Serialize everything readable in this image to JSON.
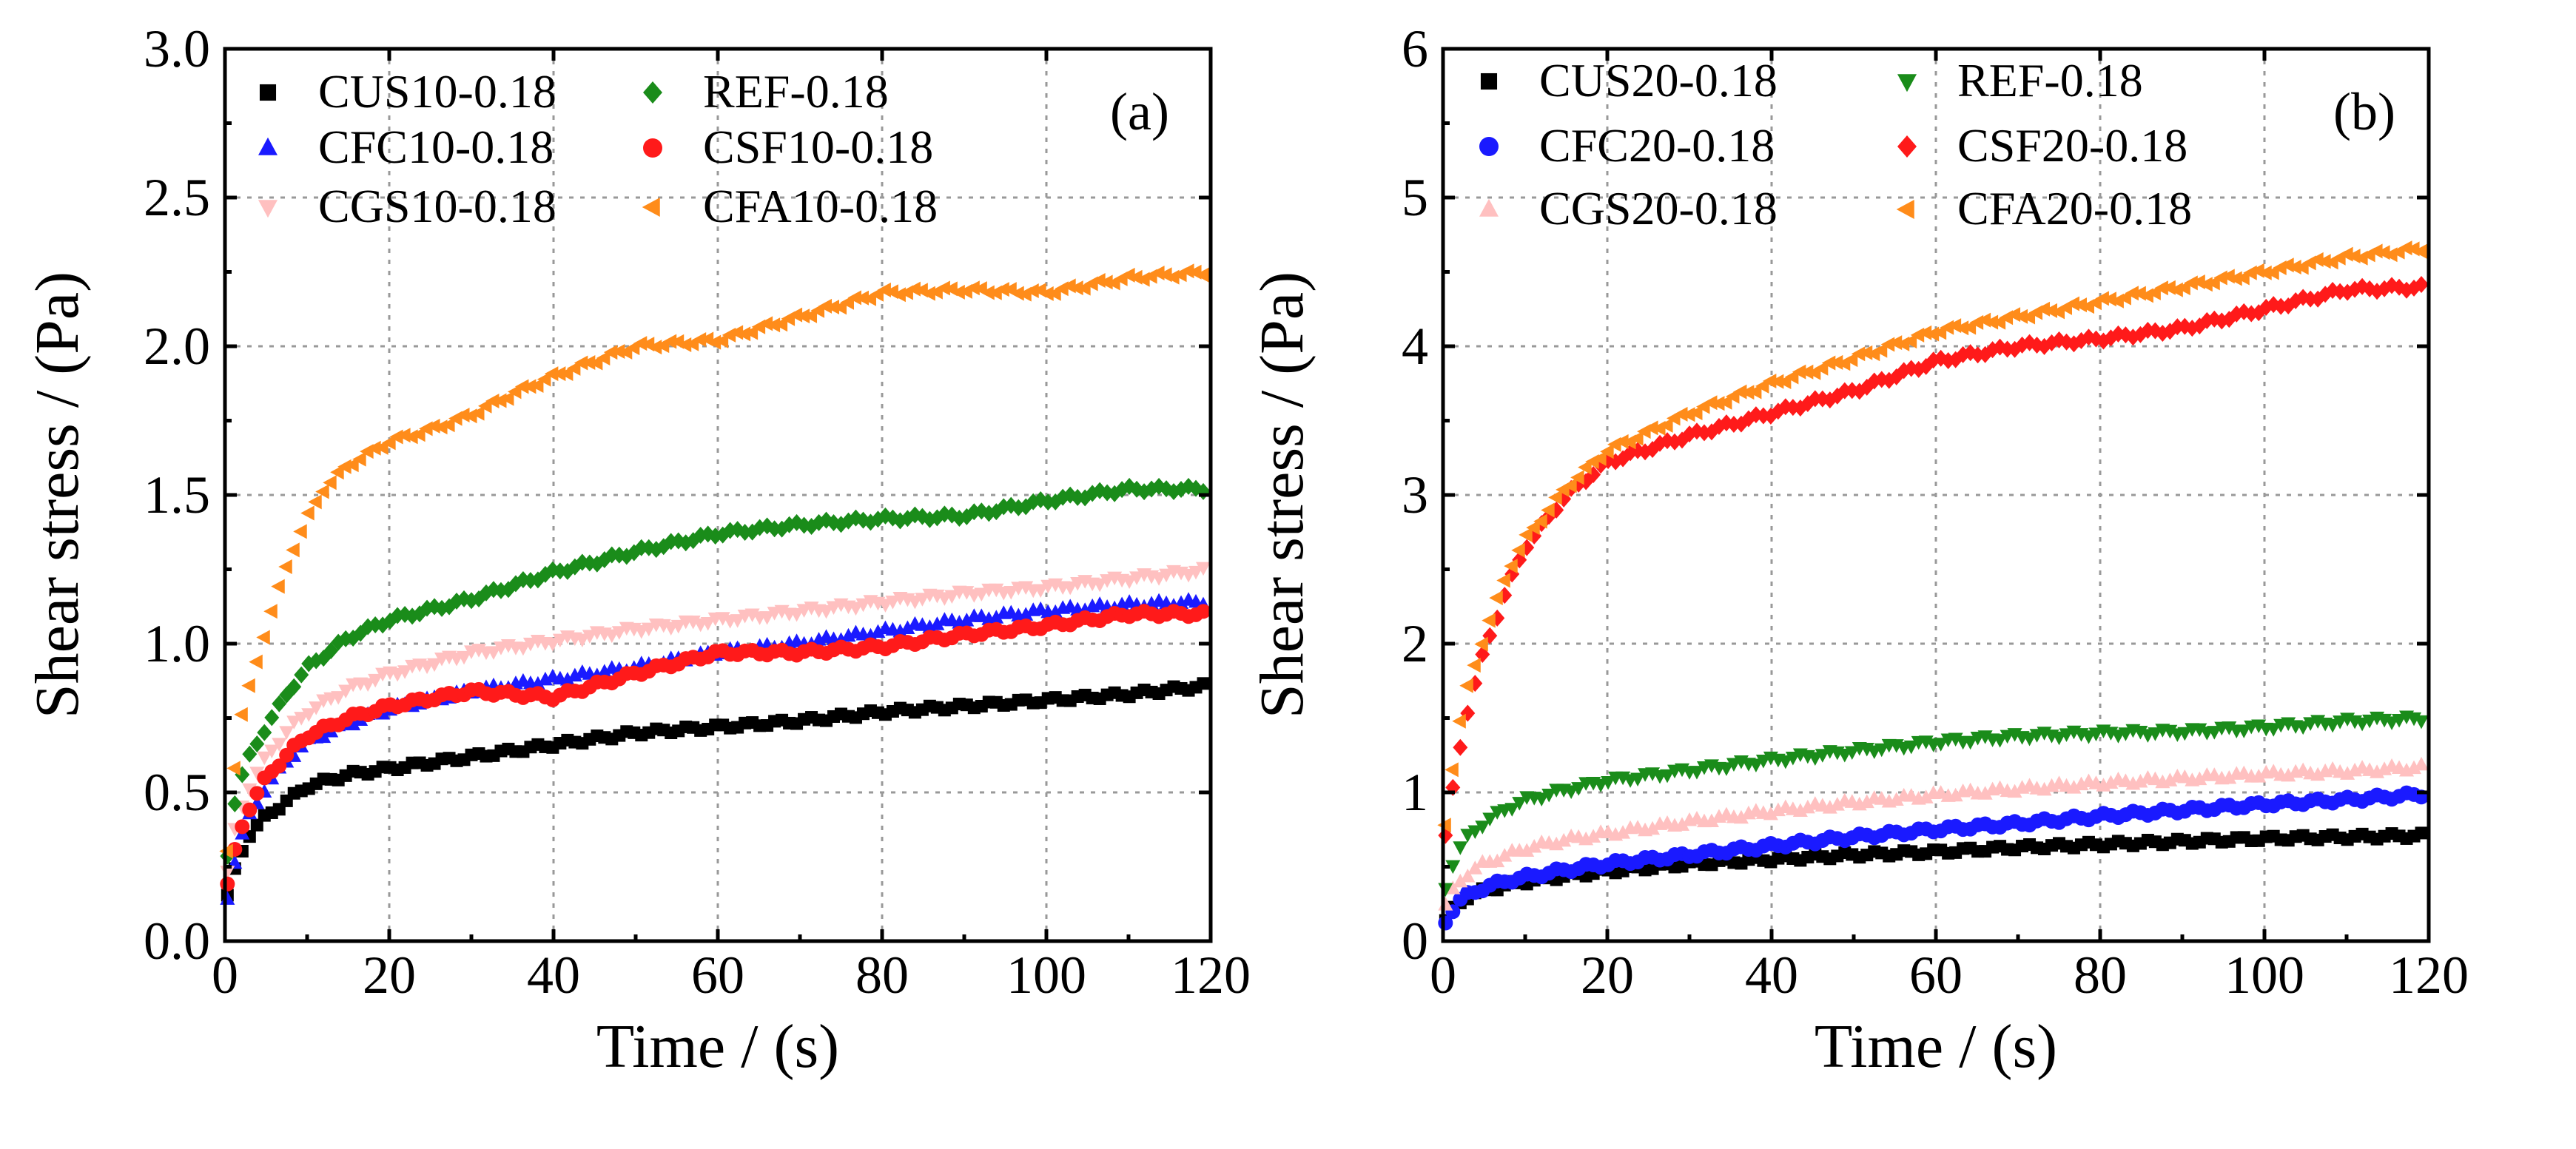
{
  "chart_data": [
    {
      "type": "scatter",
      "panel_label": "(a)",
      "xlabel": "Time / (s)",
      "ylabel": "Shear stress / (Pa)",
      "xlim": [
        0,
        120
      ],
      "ylim": [
        0,
        3.0
      ],
      "xticks": [
        "0",
        "20",
        "40",
        "60",
        "80",
        "100",
        "120"
      ],
      "yticks": [
        "0.0",
        "0.5",
        "1.0",
        "1.5",
        "2.0",
        "2.5",
        "3.0"
      ],
      "grid": true,
      "legend_position": "top-left",
      "series": [
        {
          "name": "CUS10-0.18",
          "color": "#000000",
          "marker": "square",
          "x": [
            0,
            1,
            2,
            3,
            5,
            8,
            10,
            15,
            20,
            30,
            40,
            50,
            60,
            70,
            80,
            90,
            100,
            110,
            120
          ],
          "y": [
            0.12,
            0.22,
            0.3,
            0.36,
            0.42,
            0.48,
            0.52,
            0.56,
            0.58,
            0.62,
            0.66,
            0.7,
            0.72,
            0.74,
            0.77,
            0.79,
            0.81,
            0.83,
            0.86
          ]
        },
        {
          "name": "CFC10-0.18",
          "color": "#1a1aff",
          "marker": "triangle-up",
          "x": [
            0,
            1,
            2,
            3,
            5,
            8,
            10,
            15,
            20,
            30,
            40,
            50,
            60,
            70,
            80,
            90,
            100,
            110,
            120
          ],
          "y": [
            0.1,
            0.25,
            0.35,
            0.42,
            0.52,
            0.62,
            0.67,
            0.73,
            0.78,
            0.84,
            0.88,
            0.92,
            0.97,
            1.0,
            1.04,
            1.08,
            1.11,
            1.13,
            1.14
          ]
        },
        {
          "name": "CGS10-0.18",
          "color": "#ffc0c0",
          "marker": "triangle-down",
          "x": [
            0,
            1,
            2,
            3,
            5,
            8,
            10,
            15,
            20,
            30,
            40,
            50,
            60,
            70,
            80,
            90,
            100,
            110,
            120
          ],
          "y": [
            0.18,
            0.35,
            0.45,
            0.52,
            0.62,
            0.72,
            0.77,
            0.85,
            0.9,
            0.97,
            1.01,
            1.05,
            1.08,
            1.11,
            1.14,
            1.17,
            1.19,
            1.22,
            1.25
          ]
        },
        {
          "name": "REF-0.18",
          "color": "#1a8c1a",
          "marker": "diamond",
          "x": [
            0,
            1,
            2,
            3,
            5,
            8,
            10,
            15,
            20,
            30,
            40,
            50,
            60,
            70,
            80,
            90,
            100,
            110,
            120
          ],
          "y": [
            0.22,
            0.45,
            0.55,
            0.62,
            0.72,
            0.85,
            0.92,
            1.02,
            1.08,
            1.15,
            1.24,
            1.31,
            1.37,
            1.4,
            1.42,
            1.43,
            1.48,
            1.52,
            1.52
          ]
        },
        {
          "name": "CSF10-0.18",
          "color": "#ff1a1a",
          "marker": "circle",
          "x": [
            0,
            1,
            2,
            3,
            5,
            8,
            10,
            15,
            20,
            30,
            40,
            50,
            60,
            70,
            80,
            90,
            100,
            110,
            120
          ],
          "y": [
            0.15,
            0.28,
            0.38,
            0.45,
            0.55,
            0.64,
            0.69,
            0.75,
            0.79,
            0.84,
            0.82,
            0.9,
            0.97,
            0.97,
            0.99,
            1.03,
            1.06,
            1.1,
            1.1
          ]
        },
        {
          "name": "CFA10-0.18",
          "color": "#ff8c1a",
          "marker": "triangle-left",
          "x": [
            0,
            1,
            2,
            3,
            5,
            8,
            10,
            12,
            15,
            20,
            25,
            30,
            35,
            40,
            50,
            60,
            70,
            80,
            90,
            100,
            110,
            120
          ],
          "y": [
            0.2,
            0.55,
            0.75,
            0.85,
            1.05,
            1.3,
            1.42,
            1.52,
            1.6,
            1.68,
            1.72,
            1.77,
            1.84,
            1.9,
            2.0,
            2.02,
            2.1,
            2.18,
            2.19,
            2.18,
            2.23,
            2.25
          ]
        }
      ]
    },
    {
      "type": "scatter",
      "panel_label": "(b)",
      "xlabel": "Time / (s)",
      "ylabel": "Shear stress / (Pa)",
      "xlim": [
        0,
        120
      ],
      "ylim": [
        0,
        6
      ],
      "xticks": [
        "0",
        "20",
        "40",
        "60",
        "80",
        "100",
        "120"
      ],
      "yticks": [
        "0",
        "1",
        "2",
        "3",
        "4",
        "5",
        "6"
      ],
      "grid": true,
      "legend_position": "top-left",
      "series": [
        {
          "name": "CUS20-0.18",
          "color": "#000000",
          "marker": "square",
          "x": [
            0,
            1,
            2,
            3,
            5,
            8,
            10,
            15,
            20,
            30,
            40,
            50,
            60,
            70,
            80,
            90,
            100,
            110,
            120
          ],
          "y": [
            0.1,
            0.2,
            0.26,
            0.3,
            0.34,
            0.38,
            0.4,
            0.44,
            0.47,
            0.52,
            0.55,
            0.58,
            0.6,
            0.63,
            0.65,
            0.67,
            0.69,
            0.7,
            0.71
          ]
        },
        {
          "name": "CFC20-0.18",
          "color": "#1a1aff",
          "marker": "circle",
          "x": [
            0,
            1,
            2,
            3,
            5,
            8,
            10,
            15,
            20,
            30,
            40,
            50,
            60,
            70,
            80,
            90,
            100,
            110,
            120
          ],
          "y": [
            0.1,
            0.2,
            0.27,
            0.31,
            0.36,
            0.41,
            0.43,
            0.48,
            0.52,
            0.58,
            0.64,
            0.7,
            0.75,
            0.79,
            0.84,
            0.88,
            0.92,
            0.95,
            0.99
          ]
        },
        {
          "name": "CGS20-0.18",
          "color": "#ffc0c0",
          "marker": "triangle-up",
          "x": [
            0,
            1,
            2,
            3,
            5,
            8,
            10,
            15,
            20,
            30,
            40,
            50,
            60,
            70,
            80,
            90,
            100,
            110,
            120
          ],
          "y": [
            0.2,
            0.32,
            0.4,
            0.45,
            0.52,
            0.58,
            0.62,
            0.68,
            0.72,
            0.8,
            0.87,
            0.93,
            0.98,
            1.02,
            1.06,
            1.09,
            1.12,
            1.14,
            1.17
          ]
        },
        {
          "name": "REF-0.18",
          "color": "#1a8c1a",
          "marker": "triangle-down",
          "x": [
            0,
            1,
            2,
            3,
            5,
            8,
            10,
            15,
            20,
            30,
            40,
            50,
            60,
            70,
            80,
            90,
            100,
            110,
            120
          ],
          "y": [
            0.3,
            0.5,
            0.62,
            0.7,
            0.8,
            0.9,
            0.95,
            1.02,
            1.08,
            1.15,
            1.22,
            1.28,
            1.34,
            1.38,
            1.4,
            1.41,
            1.44,
            1.48,
            1.5
          ]
        },
        {
          "name": "CSF20-0.18",
          "color": "#ff1a1a",
          "marker": "diamond",
          "x": [
            0,
            1,
            2,
            3,
            5,
            8,
            10,
            15,
            20,
            30,
            40,
            50,
            60,
            70,
            80,
            90,
            100,
            110,
            120
          ],
          "y": [
            0.6,
            0.95,
            1.28,
            1.55,
            1.95,
            2.4,
            2.65,
            3.0,
            3.22,
            3.4,
            3.55,
            3.7,
            3.9,
            4.0,
            4.05,
            4.12,
            4.25,
            4.38,
            4.4
          ]
        },
        {
          "name": "CFA20-0.18",
          "color": "#ff8c1a",
          "marker": "triangle-left",
          "x": [
            0,
            1,
            2,
            3,
            5,
            8,
            10,
            15,
            20,
            30,
            40,
            50,
            60,
            70,
            80,
            90,
            100,
            110,
            120
          ],
          "y": [
            0.65,
            1.1,
            1.45,
            1.7,
            2.05,
            2.5,
            2.7,
            3.05,
            3.3,
            3.55,
            3.75,
            3.92,
            4.1,
            4.2,
            4.3,
            4.4,
            4.5,
            4.6,
            4.66
          ]
        }
      ]
    }
  ]
}
